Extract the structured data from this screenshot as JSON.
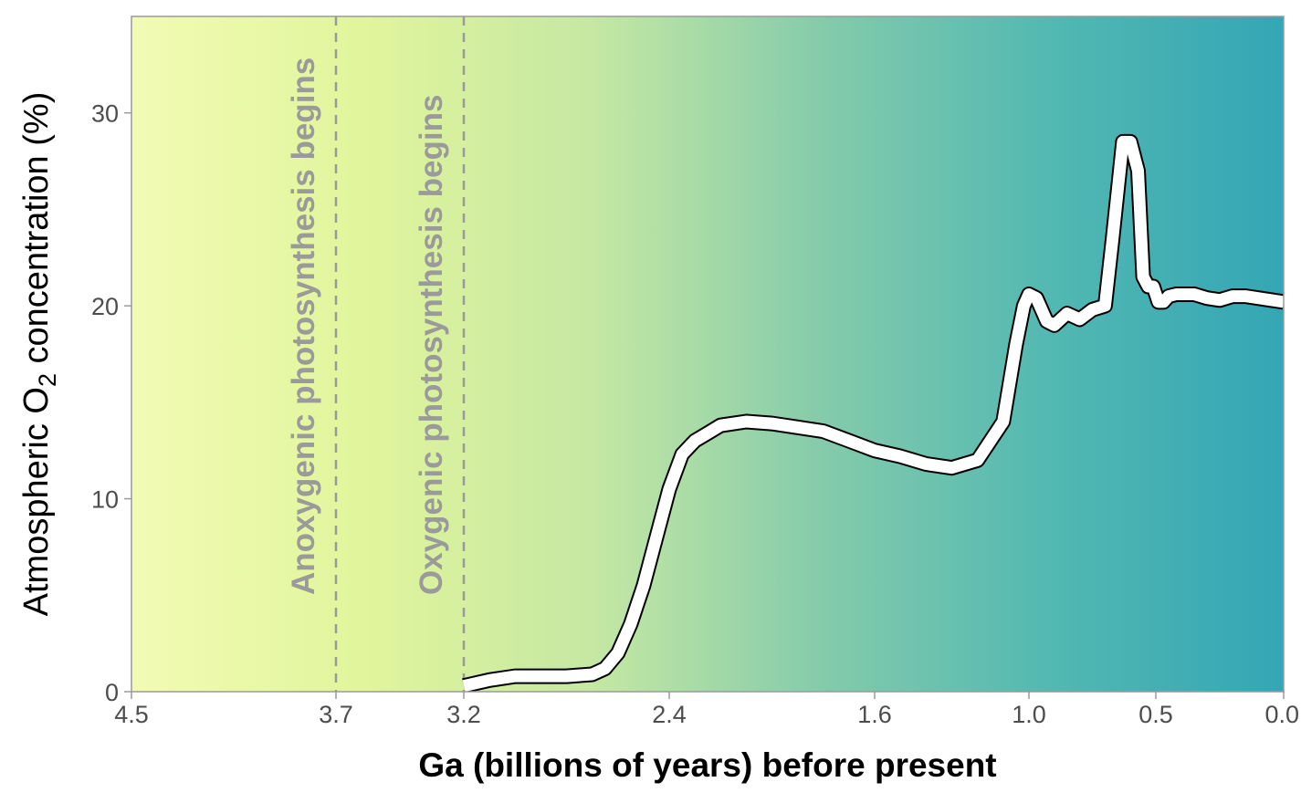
{
  "chart_data": {
    "type": "line",
    "title": "",
    "xlabel": "Ga (billions of years) before present",
    "ylabel_parts": {
      "before": "Atmospheric O",
      "sub": "2",
      "after": " concentration (%)"
    },
    "xlim": [
      4.5,
      0.0
    ],
    "ylim": [
      0,
      35
    ],
    "x_ticks": [
      4.5,
      3.7,
      3.2,
      2.4,
      1.6,
      1.0,
      0.5,
      0.0
    ],
    "x_tick_labels": [
      "4.5",
      "3.7",
      "3.2",
      "2.4",
      "1.6",
      "1.0",
      "0.5",
      "0.0"
    ],
    "y_ticks": [
      0,
      10,
      20,
      30
    ],
    "y_tick_labels": [
      "0",
      "10",
      "20",
      "30"
    ],
    "grid": false,
    "legend": "none",
    "background_gradient": [
      "#f2fbb4",
      "#e1f59c",
      "#c5e8a3",
      "#84cbab",
      "#52b8b2",
      "#34a6b5"
    ],
    "line_color": "#ffffff",
    "line_outline": "#000000",
    "annotations": [
      {
        "x": 3.7,
        "text": "Anoxygenic photosynthesis begins",
        "line_style": "dashed"
      },
      {
        "x": 3.2,
        "text": "Oxygenic photosynthesis begins",
        "line_style": "dashed"
      }
    ],
    "series": [
      {
        "x": [
          3.2,
          3.1,
          3.0,
          2.9,
          2.8,
          2.7,
          2.65,
          2.6,
          2.55,
          2.5,
          2.45,
          2.4,
          2.35,
          2.3,
          2.25,
          2.2,
          2.1,
          2.0,
          1.9,
          1.8,
          1.7,
          1.6,
          1.5,
          1.4,
          1.3,
          1.2,
          1.1,
          1.05,
          1.02,
          1.0,
          0.97,
          0.93,
          0.9,
          0.85,
          0.8,
          0.75,
          0.7,
          0.67,
          0.63,
          0.6,
          0.57,
          0.55,
          0.53,
          0.51,
          0.49,
          0.47,
          0.45,
          0.42,
          0.38,
          0.35,
          0.3,
          0.25,
          0.2,
          0.15,
          0.1,
          0.05,
          0.0
        ],
        "y": [
          0.3,
          0.6,
          0.8,
          0.8,
          0.8,
          0.9,
          1.2,
          2.0,
          3.5,
          5.5,
          8.0,
          10.5,
          12.3,
          13.0,
          13.4,
          13.8,
          14.0,
          13.9,
          13.7,
          13.5,
          13.0,
          12.5,
          12.2,
          11.8,
          11.6,
          12.0,
          14.0,
          18.0,
          20.0,
          20.6,
          20.4,
          19.2,
          19.0,
          19.6,
          19.3,
          19.8,
          20.0,
          23.5,
          28.5,
          28.5,
          27.0,
          21.5,
          21.0,
          21.0,
          20.2,
          20.2,
          20.5,
          20.6,
          20.6,
          20.6,
          20.4,
          20.3,
          20.5,
          20.5,
          20.4,
          20.3,
          20.2
        ]
      }
    ]
  }
}
